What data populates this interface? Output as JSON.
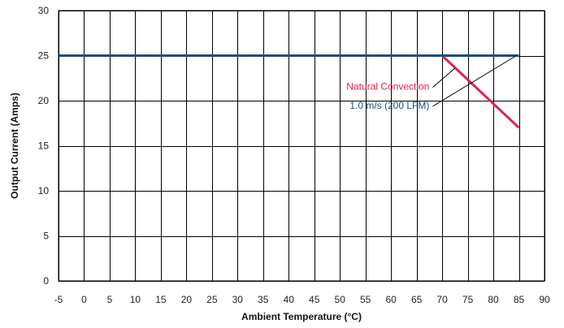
{
  "chart_data": {
    "type": "line",
    "title": "",
    "xlabel": "Ambient Temperature (°C)",
    "ylabel": "Output Current (Amps)",
    "xlim": [
      -5,
      90
    ],
    "ylim": [
      0,
      30
    ],
    "xticks": [
      -5,
      0,
      5,
      10,
      15,
      20,
      25,
      30,
      35,
      40,
      45,
      50,
      55,
      60,
      65,
      70,
      75,
      80,
      85,
      90
    ],
    "yticks": [
      0,
      5,
      10,
      15,
      20,
      25,
      30
    ],
    "grid": true,
    "series": [
      {
        "name": "Natural Convection",
        "color": "#e0234e",
        "points": [
          [
            -5,
            25
          ],
          [
            70,
            25
          ],
          [
            85,
            17
          ]
        ]
      },
      {
        "name": "1.0 m/s (200 LFM)",
        "color": "#1f4e79",
        "points": [
          [
            -5,
            25
          ],
          [
            85,
            25
          ]
        ]
      }
    ],
    "annotations": [
      {
        "text": "Natural Convection",
        "series": 0,
        "color": "#e0234e",
        "label_at": [
          67.5,
          21.2
        ],
        "pointer_to": [
          72.5,
          23.6
        ]
      },
      {
        "text": "1.0 m/s (200 LFM)",
        "series": 1,
        "color": "#1f4e79",
        "label_at": [
          67.5,
          19.1
        ],
        "pointer_to": [
          84.5,
          25
        ]
      }
    ]
  }
}
